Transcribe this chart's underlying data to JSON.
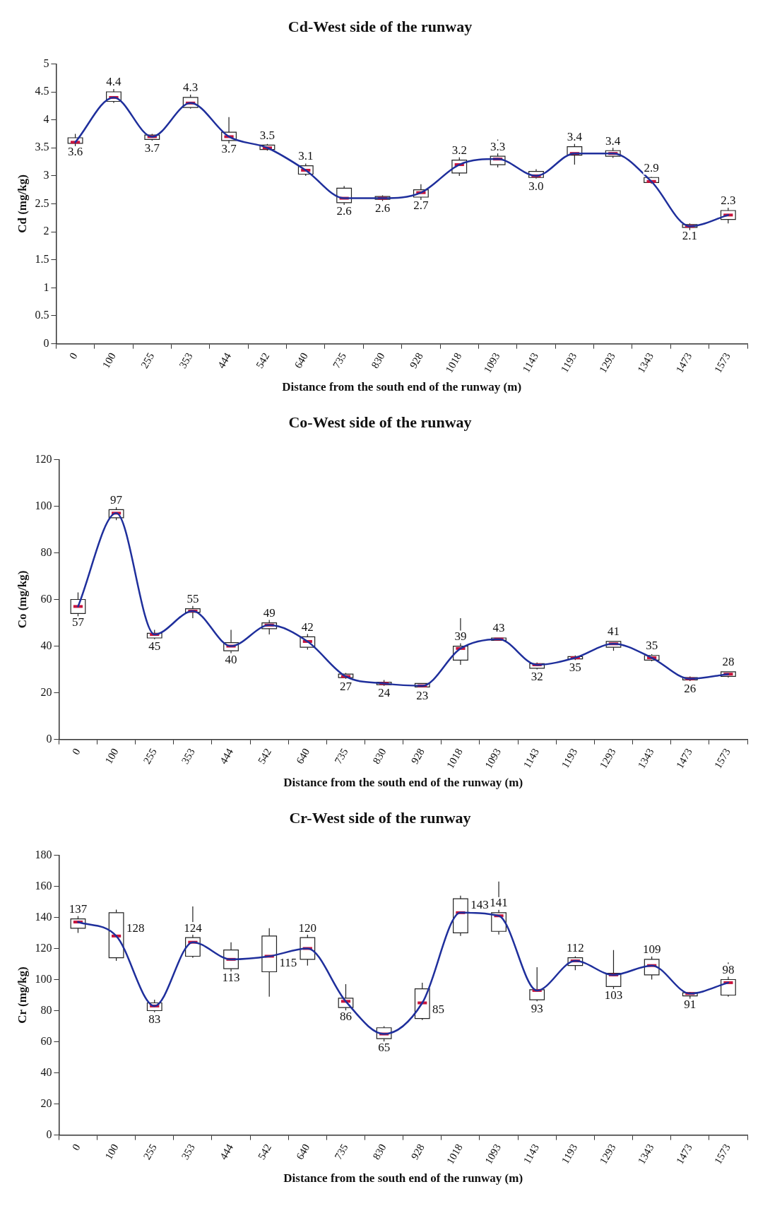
{
  "chart_data": [
    {
      "type": "box",
      "title": "Cd-West side of the runway",
      "xlabel": "Distance from the south end of the runway (m)",
      "ylabel": "Cd (mg/kg)",
      "categories": [
        "0",
        "100",
        "255",
        "353",
        "444",
        "542",
        "640",
        "735",
        "830",
        "928",
        "1018",
        "1093",
        "1143",
        "1193",
        "1293",
        "1343",
        "1473",
        "1573"
      ],
      "ylim": [
        0,
        5
      ],
      "yticks": [
        0,
        0.5,
        1,
        1.5,
        2,
        2.5,
        3,
        3.5,
        4,
        4.5,
        5
      ],
      "grid": false,
      "legend": false,
      "series": [
        {
          "type": "box",
          "color": "#ffffff",
          "boxes": [
            {
              "low": 3.5,
              "q1": 3.58,
              "median": 3.6,
              "q3": 3.68,
              "high": 3.75
            },
            {
              "low": 4.3,
              "q1": 4.33,
              "median": 4.4,
              "q3": 4.5,
              "high": 4.72
            },
            {
              "low": 3.63,
              "q1": 3.65,
              "median": 3.7,
              "q3": 3.73,
              "high": 3.75
            },
            {
              "low": 4.2,
              "q1": 4.22,
              "median": 4.3,
              "q3": 4.4,
              "high": 4.67
            },
            {
              "low": 3.58,
              "q1": 3.63,
              "median": 3.7,
              "q3": 3.78,
              "high": 4.05
            },
            {
              "low": 3.45,
              "q1": 3.47,
              "median": 3.5,
              "q3": 3.55,
              "high": 3.57
            },
            {
              "low": 3.0,
              "q1": 3.03,
              "median": 3.1,
              "q3": 3.18,
              "high": 3.22
            },
            {
              "low": 2.48,
              "q1": 2.52,
              "median": 2.6,
              "q3": 2.78,
              "high": 2.82
            },
            {
              "low": 2.55,
              "q1": 2.58,
              "median": 2.6,
              "q3": 2.63,
              "high": 2.65
            },
            {
              "low": 2.55,
              "q1": 2.62,
              "median": 2.7,
              "q3": 2.75,
              "high": 2.85
            },
            {
              "low": 3.0,
              "q1": 3.05,
              "median": 3.2,
              "q3": 3.28,
              "high": 3.5
            },
            {
              "low": 3.15,
              "q1": 3.2,
              "median": 3.3,
              "q3": 3.35,
              "high": 3.65
            },
            {
              "low": 2.95,
              "q1": 2.97,
              "median": 3.0,
              "q3": 3.08,
              "high": 3.12
            },
            {
              "low": 3.2,
              "q1": 3.37,
              "median": 3.4,
              "q3": 3.52,
              "high": 3.6
            },
            {
              "low": 3.32,
              "q1": 3.35,
              "median": 3.4,
              "q3": 3.45,
              "high": 3.55
            },
            {
              "low": 2.86,
              "q1": 2.88,
              "median": 2.9,
              "q3": 2.97,
              "high": 2.98
            },
            {
              "low": 2.0,
              "q1": 2.08,
              "median": 2.1,
              "q3": 2.13,
              "high": 2.15
            },
            {
              "low": 2.15,
              "q1": 2.22,
              "median": 2.3,
              "q3": 2.38,
              "high": 2.45
            }
          ]
        },
        {
          "type": "line",
          "color": "#1f2f9c",
          "values": [
            3.6,
            4.4,
            3.7,
            4.3,
            3.7,
            3.5,
            3.1,
            2.6,
            2.6,
            2.7,
            3.2,
            3.3,
            3.0,
            3.4,
            3.4,
            2.9,
            2.1,
            2.3
          ],
          "value_labels": [
            "3.6",
            "4.4",
            "3.7",
            "4.3",
            "3.7",
            "3.5",
            "3.1",
            "2.6",
            "2.6",
            "2.7",
            "3.2",
            "3.3",
            "3.0",
            "3.4",
            "3.4",
            "2.9",
            "2.1",
            "2.3"
          ]
        }
      ]
    },
    {
      "type": "box",
      "title": "Co-West side of the runway",
      "xlabel": "Distance from the south end of the runway (m)",
      "ylabel": "Co (mg/kg)",
      "categories": [
        "0",
        "100",
        "255",
        "353",
        "444",
        "542",
        "640",
        "735",
        "830",
        "928",
        "1018",
        "1093",
        "1143",
        "1193",
        "1293",
        "1343",
        "1473",
        "1573"
      ],
      "ylim": [
        0,
        120
      ],
      "yticks": [
        0,
        20,
        40,
        60,
        80,
        100,
        120
      ],
      "grid": false,
      "legend": false,
      "data_labels": true,
      "series": [
        {
          "type": "box",
          "color": "#ffffff",
          "boxes": [
            {
              "low": 52,
              "q1": 54,
              "median": 57,
              "q3": 60,
              "high": 63
            },
            {
              "low": 94,
              "q1": 95,
              "median": 97,
              "q3": 98.5,
              "high": 99.5
            },
            {
              "low": 43,
              "q1": 43.5,
              "median": 45,
              "q3": 45.5,
              "high": 47
            },
            {
              "low": 52,
              "q1": 54.5,
              "median": 55,
              "q3": 56,
              "high": 58
            },
            {
              "low": 37,
              "q1": 38,
              "median": 40,
              "q3": 41.5,
              "high": 47
            },
            {
              "low": 45,
              "q1": 47.5,
              "median": 49,
              "q3": 50,
              "high": 52
            },
            {
              "low": 38.5,
              "q1": 39.5,
              "median": 42,
              "q3": 44,
              "high": 47
            },
            {
              "low": 26,
              "q1": 26.5,
              "median": 27,
              "q3": 28,
              "high": 28.5
            },
            {
              "low": 23,
              "q1": 23.5,
              "median": 24,
              "q3": 24.5,
              "high": 25.5
            },
            {
              "low": 22.5,
              "q1": 22.5,
              "median": 23,
              "q3": 24,
              "high": 24
            },
            {
              "low": 32,
              "q1": 34,
              "median": 39,
              "q3": 40,
              "high": 52
            },
            {
              "low": 42.5,
              "q1": 42.5,
              "median": 43,
              "q3": 43.5,
              "high": 43.5
            },
            {
              "low": 30,
              "q1": 30.5,
              "median": 32,
              "q3": 32.5,
              "high": 33
            },
            {
              "low": 34,
              "q1": 34.5,
              "median": 35,
              "q3": 35.5,
              "high": 36
            },
            {
              "low": 38,
              "q1": 39.5,
              "median": 41,
              "q3": 42,
              "high": 42
            },
            {
              "low": 33.5,
              "q1": 34,
              "median": 35,
              "q3": 36,
              "high": 36.5
            },
            {
              "low": 25,
              "q1": 25.5,
              "median": 26,
              "q3": 26.5,
              "high": 27
            },
            {
              "low": 26.5,
              "q1": 27,
              "median": 28,
              "q3": 29,
              "high": 29
            }
          ]
        },
        {
          "type": "line",
          "color": "#1f2f9c",
          "values": [
            57,
            97,
            45,
            55,
            40,
            49,
            42,
            27,
            24,
            23,
            39,
            43,
            32,
            35,
            41,
            35,
            26,
            28
          ]
        }
      ]
    },
    {
      "type": "box",
      "title": "Cr-West side of the runway",
      "xlabel": "Distance from the south end of the runway (m)",
      "ylabel": "Cr (mg/kg)",
      "categories": [
        "0",
        "100",
        "255",
        "353",
        "444",
        "542",
        "640",
        "735",
        "830",
        "928",
        "1018",
        "1093",
        "1143",
        "1193",
        "1293",
        "1343",
        "1473",
        "1573"
      ],
      "ylim": [
        0,
        180
      ],
      "yticks": [
        0,
        20,
        40,
        60,
        80,
        100,
        120,
        140,
        160,
        180
      ],
      "grid": false,
      "legend": false,
      "data_labels": true,
      "series": [
        {
          "type": "box",
          "color": "#ffffff",
          "boxes": [
            {
              "low": 130,
              "q1": 133,
              "median": 137,
              "q3": 139,
              "high": 148
            },
            {
              "low": 112,
              "q1": 114,
              "median": 128,
              "q3": 143,
              "high": 145
            },
            {
              "low": 79,
              "q1": 80,
              "median": 83,
              "q3": 85,
              "high": 87
            },
            {
              "low": 114,
              "q1": 115,
              "median": 124,
              "q3": 127,
              "high": 147
            },
            {
              "low": 100,
              "q1": 107,
              "median": 113,
              "q3": 119,
              "high": 124
            },
            {
              "low": 89,
              "q1": 105,
              "median": 115,
              "q3": 128,
              "high": 133
            },
            {
              "low": 109,
              "q1": 113,
              "median": 120,
              "q3": 127,
              "high": 134
            },
            {
              "low": 76,
              "q1": 82,
              "median": 86,
              "q3": 88,
              "high": 97
            },
            {
              "low": 57,
              "q1": 62,
              "median": 65,
              "q3": 69,
              "high": 70
            },
            {
              "low": 74,
              "q1": 75,
              "median": 85,
              "q3": 94,
              "high": 98
            },
            {
              "low": 128,
              "q1": 130,
              "median": 143,
              "q3": 152,
              "high": 154
            },
            {
              "low": 129,
              "q1": 131,
              "median": 141,
              "q3": 143,
              "high": 163
            },
            {
              "low": 86,
              "q1": 87,
              "median": 93,
              "q3": 93.5,
              "high": 108
            },
            {
              "low": 106,
              "q1": 109,
              "median": 112,
              "q3": 114,
              "high": 115
            },
            {
              "low": 94,
              "q1": 95.5,
              "median": 103,
              "q3": 104,
              "high": 119
            },
            {
              "low": 100,
              "q1": 103,
              "median": 109,
              "q3": 113,
              "high": 118
            },
            {
              "low": 87,
              "q1": 89.5,
              "median": 91,
              "q3": 91.5,
              "high": 92
            },
            {
              "low": 89,
              "q1": 90,
              "median": 98,
              "q3": 100,
              "high": 111
            }
          ]
        },
        {
          "type": "line",
          "color": "#1f2f9c",
          "values": [
            137,
            128,
            83,
            124,
            113,
            115,
            120,
            86,
            65,
            85,
            143,
            141,
            93,
            112,
            103,
            109,
            91,
            98
          ]
        }
      ]
    }
  ]
}
